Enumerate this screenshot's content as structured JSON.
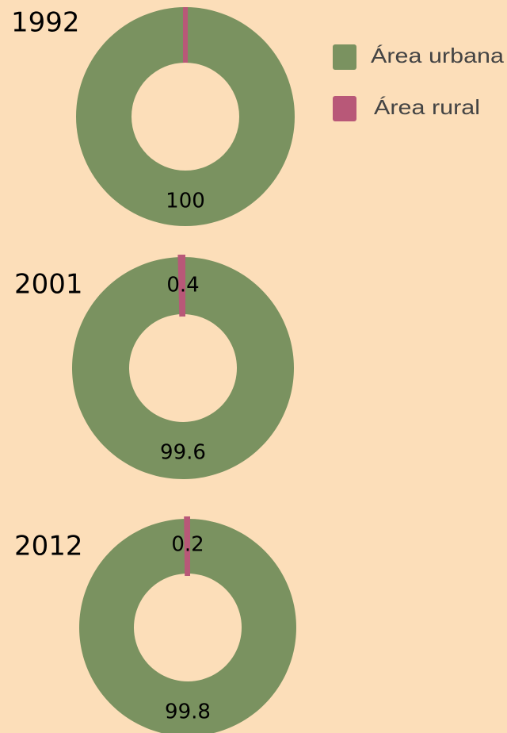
{
  "chart_data": [
    {
      "type": "pie",
      "title": "1992",
      "categories": [
        "Área urbana",
        "Área rural"
      ],
      "values": [
        100,
        0
      ],
      "value_labels": [
        "100",
        null
      ],
      "colors": [
        "#7a9260",
        "#b85878"
      ]
    },
    {
      "type": "pie",
      "title": "2001",
      "categories": [
        "Área urbana",
        "Área rural"
      ],
      "values": [
        99.6,
        0.4
      ],
      "value_labels": [
        "99.6",
        "0.4"
      ],
      "colors": [
        "#7a9260",
        "#b85878"
      ]
    },
    {
      "type": "pie",
      "title": "2012",
      "categories": [
        "Área urbana",
        "Área rural"
      ],
      "values": [
        99.8,
        0.2
      ],
      "value_labels": [
        "99.8",
        "0.2"
      ],
      "colors": [
        "#7a9260",
        "#b85878"
      ]
    }
  ]
}
